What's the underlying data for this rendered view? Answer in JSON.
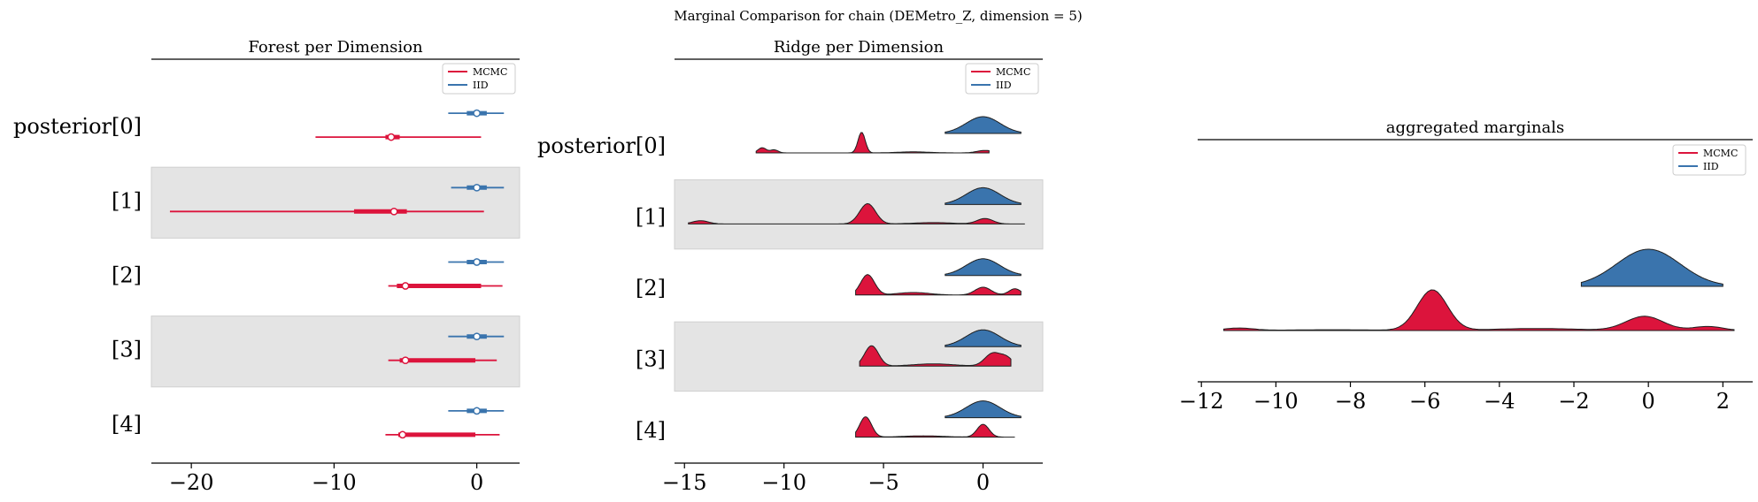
{
  "title": "Marginal Comparison for chain (DEMetro_Z, dimension = 5)",
  "colors": {
    "mcmc": "#dc143c",
    "iid": "#3a74ad",
    "band": "#e4e4e4",
    "axis": "#000000"
  },
  "legend": [
    {
      "name": "MCMC",
      "color": "#dc143c"
    },
    {
      "name": "IID",
      "color": "#3a74ad"
    }
  ],
  "chart_data": [
    {
      "type": "forest",
      "title": "Forest per Dimension",
      "row_labels": [
        "posterior[0]",
        "[1]",
        "[2]",
        "[3]",
        "[4]"
      ],
      "xticks": [
        -20,
        -10,
        0
      ],
      "xlim": [
        -22.8,
        3.0
      ],
      "legend_position": "top-right",
      "series": [
        {
          "name": "MCMC",
          "rows": [
            {
              "hdi": [
                -11.3,
                0.3
              ],
              "iqr": [
                -6.4,
                -5.4
              ],
              "median": -6.0
            },
            {
              "hdi": [
                -21.5,
                0.5
              ],
              "iqr": [
                -8.6,
                -4.9
              ],
              "median": -5.8
            },
            {
              "hdi": [
                -6.2,
                1.8
              ],
              "iqr": [
                -5.6,
                0.3
              ],
              "median": -5.0
            },
            {
              "hdi": [
                -6.2,
                1.4
              ],
              "iqr": [
                -5.4,
                -0.1
              ],
              "median": -5.0
            },
            {
              "hdi": [
                -6.4,
                1.6
              ],
              "iqr": [
                -5.5,
                -0.1
              ],
              "median": -5.2
            }
          ]
        },
        {
          "name": "IID",
          "rows": [
            {
              "hdi": [
                -2.0,
                1.9
              ],
              "iqr": [
                -0.7,
                0.7
              ],
              "median": 0.0
            },
            {
              "hdi": [
                -1.8,
                1.9
              ],
              "iqr": [
                -0.7,
                0.7
              ],
              "median": 0.0
            },
            {
              "hdi": [
                -2.0,
                1.9
              ],
              "iqr": [
                -0.7,
                0.7
              ],
              "median": 0.0
            },
            {
              "hdi": [
                -2.0,
                1.9
              ],
              "iqr": [
                -0.7,
                0.7
              ],
              "median": 0.0
            },
            {
              "hdi": [
                -2.0,
                1.9
              ],
              "iqr": [
                -0.7,
                0.7
              ],
              "median": 0.0
            }
          ]
        }
      ]
    },
    {
      "type": "ridge",
      "title": "Ridge per Dimension",
      "row_labels": [
        "posterior[0]",
        "[1]",
        "[2]",
        "[3]",
        "[4]"
      ],
      "xticks": [
        -15,
        -10,
        -5,
        0
      ],
      "xlim": [
        -15.5,
        3.0
      ],
      "legend_position": "top-right",
      "series": [
        {
          "name": "MCMC",
          "rows": [
            {
              "range": [
                -11.4,
                0.3
              ],
              "peaks": [
                [
                  -11.1,
                  0.25,
                  0.2
                ],
                [
                  -10.5,
                  0.15,
                  0.2
                ],
                [
                  -6.1,
                  1.0,
                  0.18
                ],
                [
                  -3.5,
                  0.05,
                  0.8
                ],
                [
                  0.1,
                  0.12,
                  0.4
                ]
              ]
            },
            {
              "range": [
                -14.8,
                2.1
              ],
              "peaks": [
                [
                  -14.2,
                  0.12,
                  0.4
                ],
                [
                  -5.8,
                  0.75,
                  0.4
                ],
                [
                  -2.5,
                  0.05,
                  1.0
                ],
                [
                  0.1,
                  0.2,
                  0.4
                ]
              ]
            },
            {
              "range": [
                -6.4,
                1.9
              ],
              "peaks": [
                [
                  -5.8,
                  0.65,
                  0.35
                ],
                [
                  -3.5,
                  0.08,
                  0.8
                ],
                [
                  0.0,
                  0.25,
                  0.4
                ],
                [
                  1.6,
                  0.2,
                  0.3
                ]
              ]
            },
            {
              "range": [
                -6.2,
                1.4
              ],
              "peaks": [
                [
                  -5.6,
                  0.55,
                  0.35
                ],
                [
                  -2.5,
                  0.06,
                  1.0
                ],
                [
                  0.5,
                  0.35,
                  0.4
                ],
                [
                  1.2,
                  0.2,
                  0.3
                ]
              ]
            },
            {
              "range": [
                -6.4,
                1.6
              ],
              "peaks": [
                [
                  -5.9,
                  0.95,
                  0.3
                ],
                [
                  -3.0,
                  0.06,
                  1.0
                ],
                [
                  0.0,
                  0.6,
                  0.3
                ]
              ]
            }
          ]
        },
        {
          "name": "IID",
          "rows": [
            {
              "range": [
                -1.9,
                1.9
              ],
              "peaks": [
                [
                  0.0,
                  1.0,
                  0.85
                ]
              ]
            },
            {
              "range": [
                -1.9,
                1.9
              ],
              "peaks": [
                [
                  0.0,
                  1.0,
                  0.85
                ]
              ]
            },
            {
              "range": [
                -1.9,
                1.9
              ],
              "peaks": [
                [
                  0.0,
                  1.0,
                  0.85
                ]
              ]
            },
            {
              "range": [
                -1.9,
                1.9
              ],
              "peaks": [
                [
                  0.0,
                  1.0,
                  0.85
                ]
              ]
            },
            {
              "range": [
                -1.9,
                1.9
              ],
              "peaks": [
                [
                  0.0,
                  1.0,
                  0.85
                ]
              ]
            }
          ]
        }
      ]
    },
    {
      "type": "ridge",
      "title": "aggregated marginals",
      "xticks": [
        -12,
        -10,
        -8,
        -6,
        -4,
        -2,
        0,
        2
      ],
      "xlim": [
        -12.1,
        2.8
      ],
      "legend_position": "top-right",
      "series": [
        {
          "name": "MCMC",
          "range": [
            -11.4,
            2.3
          ],
          "peaks": [
            [
              -11.0,
              0.06,
              0.4
            ],
            [
              -8.5,
              0.02,
              1.2
            ],
            [
              -5.8,
              1.0,
              0.4
            ],
            [
              -3.0,
              0.05,
              1.2
            ],
            [
              -0.1,
              0.35,
              0.5
            ],
            [
              1.6,
              0.1,
              0.4
            ]
          ]
        },
        {
          "name": "IID",
          "range": [
            -1.8,
            2.0
          ],
          "peaks": [
            [
              0.0,
              1.0,
              0.85
            ]
          ]
        }
      ]
    }
  ]
}
